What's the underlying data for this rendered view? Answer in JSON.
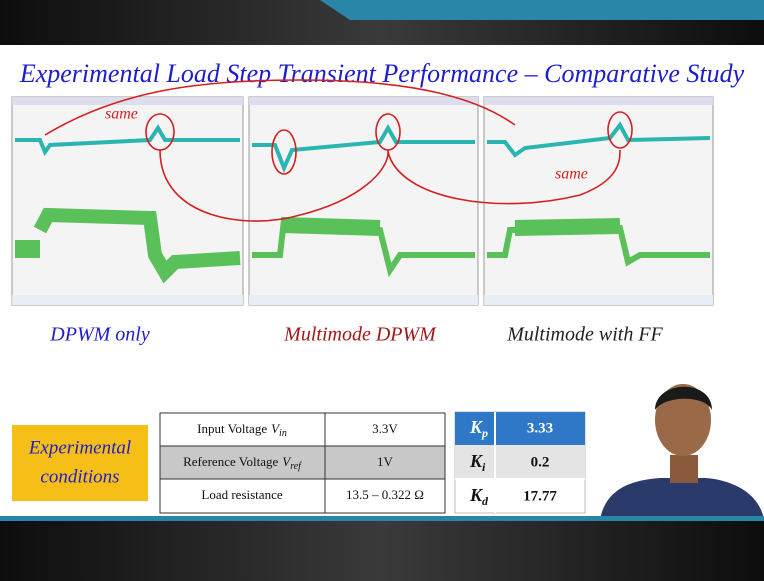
{
  "header": {
    "title": "Experimental Load Step Transient Performance – Comparative Study"
  },
  "annotations": [
    "same",
    "same"
  ],
  "captions": [
    "DPWM only",
    "Multimode DPWM",
    "Multimode with FF"
  ],
  "conditions_label": [
    "Experimental",
    "conditions"
  ],
  "table": {
    "rows": [
      {
        "label": "Input Voltage",
        "symbol": "V",
        "subscript": "in",
        "value": "3.3V"
      },
      {
        "label": "Reference Voltage",
        "symbol": "V",
        "subscript": "ref",
        "value": "1V"
      },
      {
        "label": "Load resistance",
        "value": "13.5 – 0.322 Ω"
      }
    ]
  },
  "gains": [
    {
      "symbol": "K",
      "subscript": "p",
      "value": "3.33"
    },
    {
      "symbol": "K",
      "subscript": "i",
      "value": "0.2"
    },
    {
      "symbol": "K",
      "subscript": "d",
      "value": "17.77"
    }
  ]
}
